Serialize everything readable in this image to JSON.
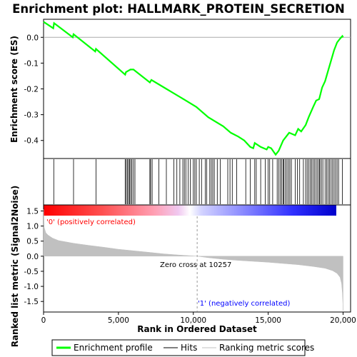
{
  "chart_data": {
    "type": "line",
    "title": "Enrichment plot: HALLMARK_PROTEIN_SECRETION",
    "xlabel": "Rank in Ordered Dataset",
    "ylabel_top": "Enrichment score (ES)",
    "ylabel_bottom": "Ranked list metric (Signal2Noise)",
    "xlim": [
      0,
      20500
    ],
    "es_ylim": [
      -0.47,
      0.07
    ],
    "metric_ylim": [
      -1.85,
      1.7
    ],
    "x_ticks": [
      0,
      5000,
      10000,
      15000,
      20000
    ],
    "x_tick_labels": [
      "0",
      "5,000",
      "10,000",
      "15,000",
      "20,000"
    ],
    "es_ticks": [
      0.0,
      -0.1,
      -0.2,
      -0.3,
      -0.4
    ],
    "es_tick_labels": [
      "0.0",
      "-0.1",
      "-0.2",
      "-0.3",
      "-0.4"
    ],
    "metric_ticks": [
      1.5,
      1.0,
      0.5,
      0.0,
      -0.5,
      -1.0,
      -1.5
    ],
    "metric_tick_labels": [
      "1.5",
      "1.0",
      "0.5",
      "0.0",
      "-0.5",
      "-1.0",
      "-1.5"
    ],
    "enrichment_profile": {
      "name": "Enrichment profile",
      "color": "#00ff00",
      "x": [
        0,
        650,
        700,
        1950,
        2000,
        3450,
        3500,
        5450,
        5500,
        5650,
        5800,
        6000,
        7100,
        7200,
        8200,
        9500,
        10200,
        11000,
        12000,
        12500,
        13000,
        13400,
        13800,
        14000,
        14100,
        14500,
        14900,
        15000,
        15200,
        15500,
        15700,
        16000,
        16400,
        16800,
        17000,
        17200,
        17500,
        17700,
        18000,
        18200,
        18400,
        18600,
        18800,
        19000,
        19200,
        19400,
        19600,
        19800,
        19950,
        20000
      ],
      "y": [
        0.06,
        0.035,
        0.055,
        0.0,
        0.012,
        -0.055,
        -0.045,
        -0.145,
        -0.135,
        -0.13,
        -0.125,
        -0.125,
        -0.175,
        -0.165,
        -0.2,
        -0.245,
        -0.27,
        -0.31,
        -0.345,
        -0.37,
        -0.385,
        -0.4,
        -0.425,
        -0.43,
        -0.41,
        -0.425,
        -0.435,
        -0.425,
        -0.43,
        -0.455,
        -0.44,
        -0.4,
        -0.37,
        -0.38,
        -0.355,
        -0.365,
        -0.34,
        -0.31,
        -0.27,
        -0.245,
        -0.24,
        -0.195,
        -0.17,
        -0.13,
        -0.09,
        -0.05,
        -0.02,
        -0.005,
        0.005,
        0.0
      ]
    },
    "hits": [
      680,
      2000,
      3500,
      5450,
      5520,
      5600,
      5680,
      5750,
      5820,
      5900,
      6000,
      6100,
      7100,
      7150,
      7250,
      7700,
      8200,
      8700,
      8900,
      9100,
      9300,
      9400,
      9500,
      9650,
      9800,
      10000,
      10100,
      10200,
      10400,
      10550,
      10800,
      10900,
      11100,
      11200,
      11300,
      11400,
      11600,
      11800,
      12300,
      12450,
      12600,
      12900,
      13500,
      13800,
      14100,
      14200,
      14500,
      14800,
      15000,
      15100,
      15300,
      15600,
      15700,
      15800,
      15900,
      16000,
      16050,
      16150,
      16250,
      16350,
      16450,
      16550,
      16800,
      16950,
      17100,
      17350,
      17500,
      17600,
      17700,
      17800,
      17900,
      18000,
      18100,
      18200,
      18300,
      18400,
      18450,
      18550,
      18650,
      18800,
      18900,
      19000,
      19100,
      19200,
      19300,
      19400,
      19500,
      19600,
      19700,
      19950
    ],
    "metric_profile": {
      "name": "Ranking metric scores",
      "color": "#c0c0c0",
      "x": [
        0,
        50,
        150,
        300,
        600,
        1000,
        2000,
        3000,
        4000,
        5000,
        6000,
        7000,
        8000,
        9000,
        10257,
        11000,
        12000,
        13000,
        14000,
        15000,
        16000,
        17000,
        18000,
        18800,
        19300,
        19600,
        19800,
        19900,
        19950,
        19990,
        20000
      ],
      "y": [
        1.55,
        0.95,
        0.78,
        0.7,
        0.6,
        0.52,
        0.43,
        0.36,
        0.3,
        0.23,
        0.18,
        0.13,
        0.08,
        0.04,
        0.0,
        -0.05,
        -0.1,
        -0.14,
        -0.17,
        -0.2,
        -0.24,
        -0.28,
        -0.34,
        -0.4,
        -0.48,
        -0.57,
        -0.7,
        -0.9,
        -1.2,
        -1.6,
        -1.8
      ]
    },
    "annotations": {
      "pos_label": "'0' (positively correlated)",
      "neg_label": "'1' (negatively correlated)",
      "zero_cross": "Zero cross at 10257",
      "zero_cross_x": 10257,
      "pos_color": "#ff0000",
      "neg_color": "#0000ff"
    },
    "legend": {
      "placement": "bottom",
      "entries": [
        {
          "name": "Enrichment profile",
          "color": "#00ff00"
        },
        {
          "name": "Hits",
          "color": "#000000"
        },
        {
          "name": "Ranking metric scores",
          "color": "#c0c0c0"
        }
      ]
    },
    "grid": false
  }
}
